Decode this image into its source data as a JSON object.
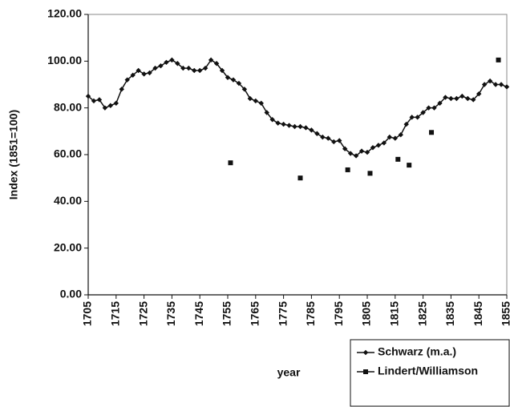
{
  "chart_data": {
    "type": "line",
    "x_label": "year",
    "y_label": "Index (1851=100)",
    "xlim": [
      1705,
      1855
    ],
    "xticks": [
      1705,
      1715,
      1725,
      1735,
      1745,
      1755,
      1765,
      1775,
      1785,
      1795,
      1805,
      1815,
      1825,
      1835,
      1845,
      1855
    ],
    "ylim": [
      0,
      120
    ],
    "yticks": [
      {
        "value": 0,
        "label": "0.00"
      },
      {
        "value": 20,
        "label": "20.00"
      },
      {
        "value": 40,
        "label": "40.00"
      },
      {
        "value": 60,
        "label": "60.00"
      },
      {
        "value": 80,
        "label": "80.00"
      },
      {
        "value": 100,
        "label": "100.00"
      },
      {
        "value": 120,
        "label": "120.00"
      }
    ],
    "grid": false,
    "legend": "bottom-right",
    "series": [
      {
        "name": "Schwarz (m.a.)",
        "color": "#111111",
        "style": "line-diamond",
        "x": [
          1705,
          1707,
          1709,
          1711,
          1713,
          1715,
          1717,
          1719,
          1721,
          1723,
          1725,
          1727,
          1729,
          1731,
          1733,
          1735,
          1737,
          1739,
          1741,
          1743,
          1745,
          1747,
          1749,
          1751,
          1753,
          1755,
          1757,
          1759,
          1761,
          1763,
          1765,
          1767,
          1769,
          1771,
          1773,
          1775,
          1777,
          1779,
          1781,
          1783,
          1785,
          1787,
          1789,
          1791,
          1793,
          1795,
          1797,
          1799,
          1801,
          1803,
          1805,
          1807,
          1809,
          1811,
          1813,
          1815,
          1817,
          1819,
          1821,
          1823,
          1825,
          1827,
          1829,
          1831,
          1833,
          1835,
          1837,
          1839,
          1841,
          1843,
          1845,
          1847,
          1849,
          1851,
          1853,
          1855
        ],
        "values": [
          85,
          83,
          83.5,
          80,
          81,
          82,
          88,
          92,
          94,
          96,
          94.5,
          95,
          97,
          98,
          99.5,
          100.5,
          99,
          97,
          97,
          96,
          96,
          97,
          100.5,
          99,
          96,
          93,
          92,
          90.5,
          88,
          84,
          83,
          82,
          78,
          75,
          73.5,
          73,
          72.5,
          72,
          72,
          71.5,
          70.5,
          69,
          67.5,
          67,
          65.5,
          66,
          62.5,
          60.5,
          59.5,
          61.5,
          61,
          63,
          64,
          65,
          67.5,
          67,
          68.5,
          73,
          76,
          76,
          78,
          80,
          80,
          82,
          84.5,
          84,
          84,
          85,
          84,
          83.5,
          86,
          90,
          91.5,
          90,
          90,
          89
        ]
      },
      {
        "name": "Lindert/Williamson",
        "color": "#111111",
        "style": "square",
        "x": [
          1756,
          1781,
          1798,
          1806,
          1816,
          1820,
          1828,
          1852
        ],
        "values": [
          56.5,
          50,
          53.5,
          52,
          58,
          55.5,
          69.5,
          100.5
        ]
      }
    ]
  }
}
